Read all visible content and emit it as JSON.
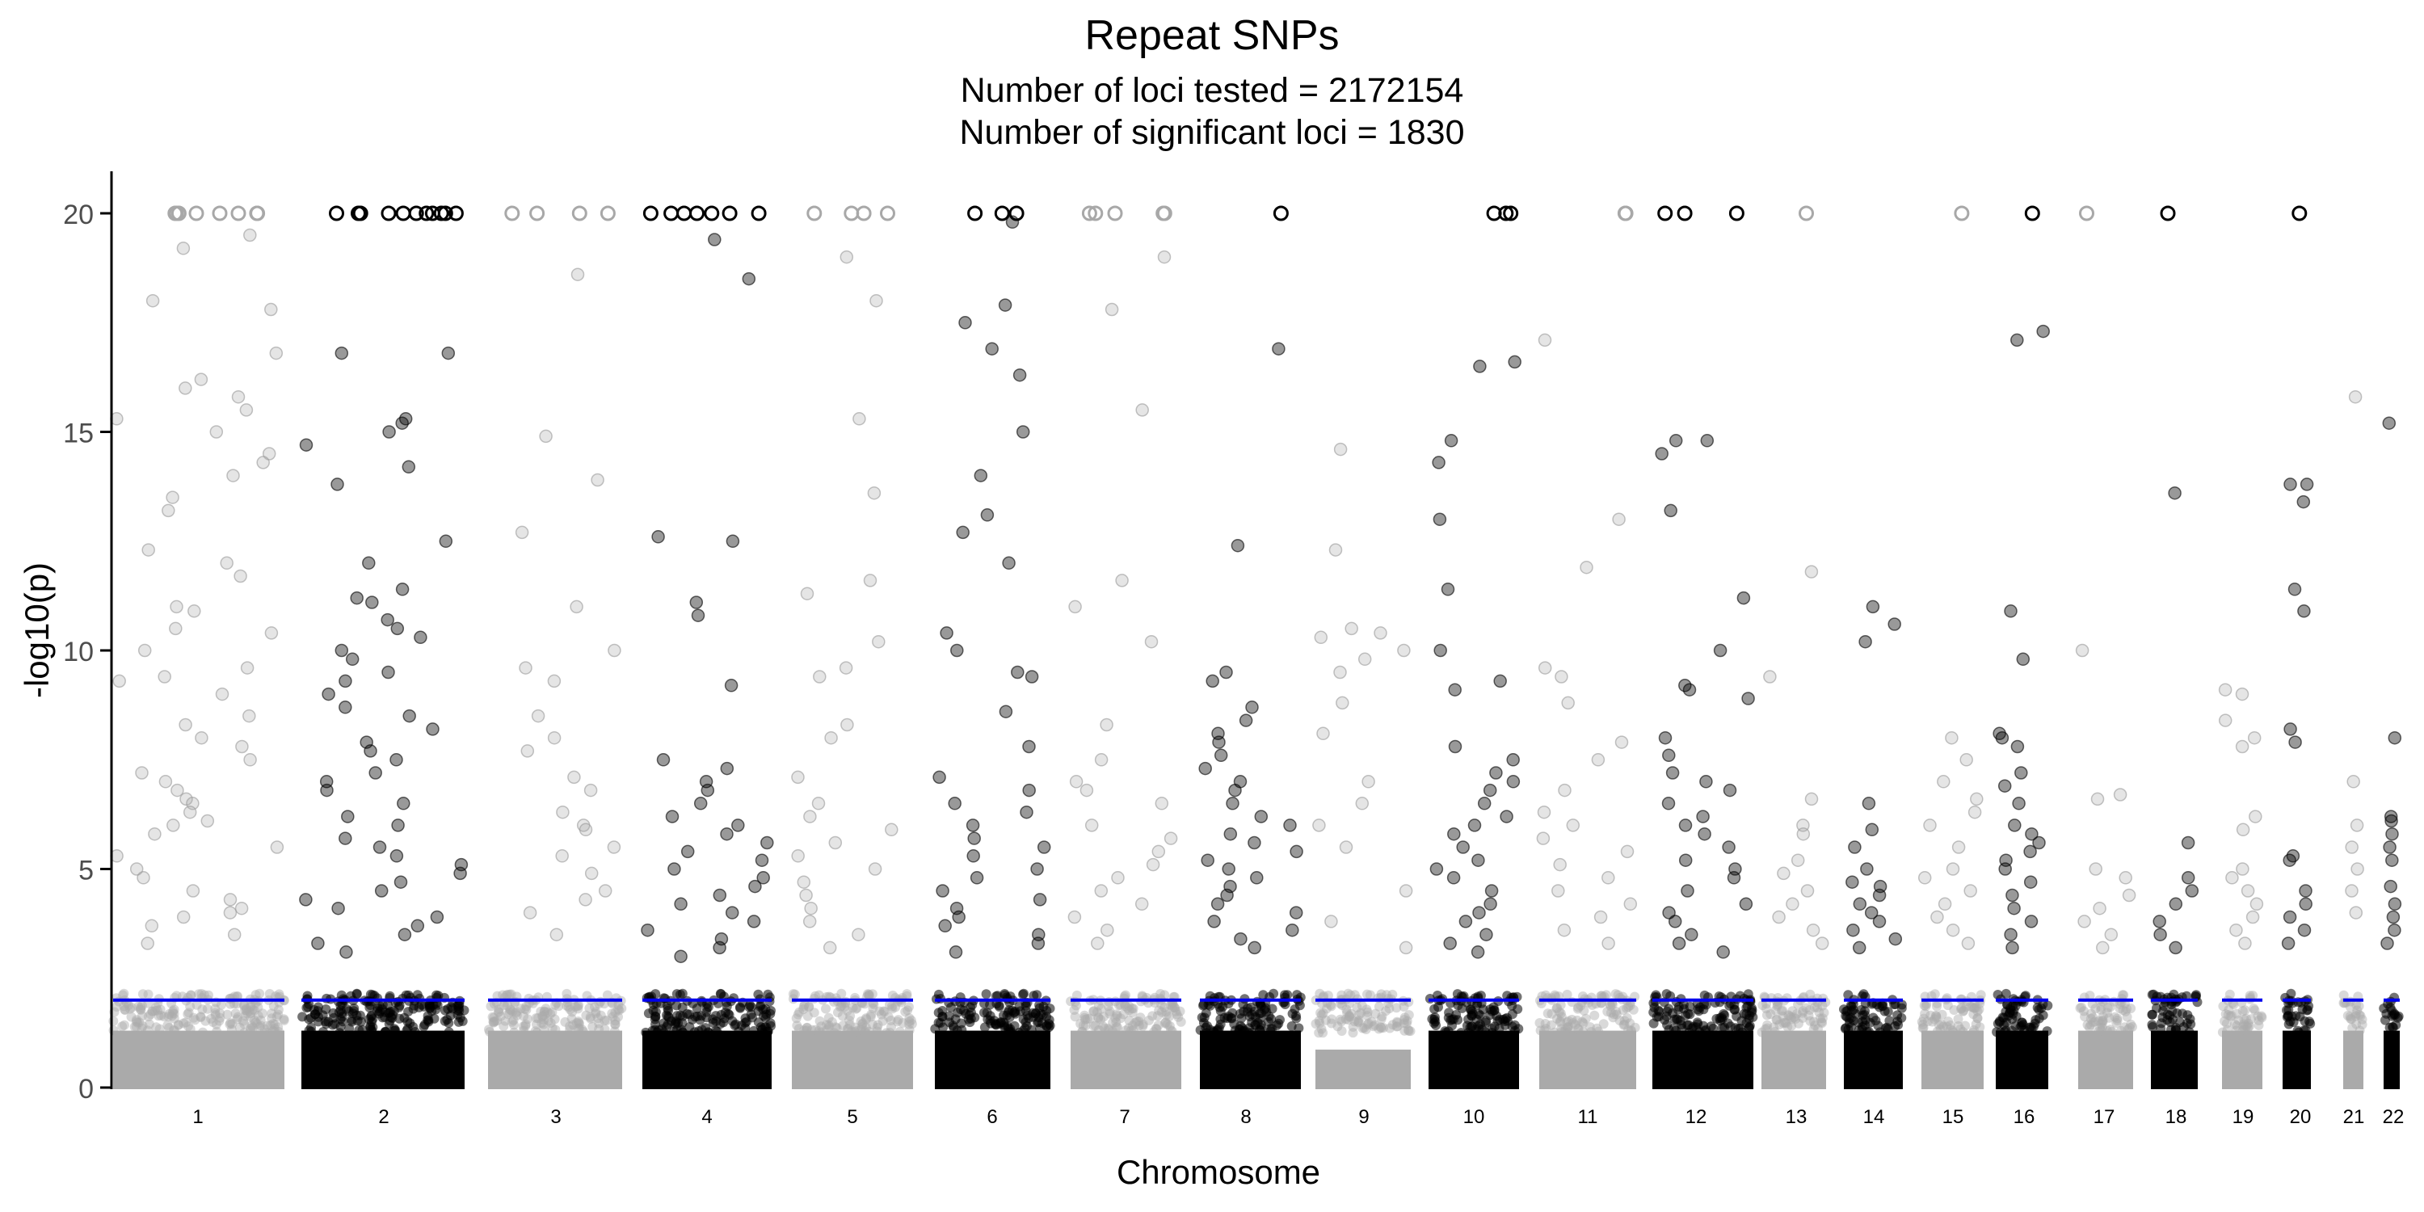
{
  "chart_data": {
    "type": "scatter",
    "title": "Repeat SNPs",
    "subtitle_lines": [
      "Number of loci tested = 2172154",
      " Number of significant loci = 1830"
    ],
    "xlabel": "Chromosome",
    "ylabel": "-log10(p)",
    "ylim": [
      0,
      21
    ],
    "y_ticks": [
      0,
      5,
      10,
      15,
      20
    ],
    "grid": false,
    "legend": "none",
    "significance_threshold": 2,
    "threshold_color": "#0000ee",
    "cap_value": 20,
    "colors": {
      "odd_chromosome": "#aaaaaa",
      "even_chromosome": "#000000"
    },
    "chromosomes": [
      {
        "label": "1",
        "capped": 8,
        "peaks": [
          19.5,
          19.2,
          18.0,
          17.8,
          16.8,
          16.2,
          16.0,
          15.8,
          15.5,
          15.3,
          15.0,
          14.5,
          14.3,
          14.0,
          13.5,
          13.2,
          12.3,
          12.0,
          11.7,
          11.0,
          10.9,
          10.5,
          10.4,
          10.0,
          9.6,
          9.4,
          9.3,
          9.0,
          8.5,
          8.3,
          8.0,
          7.8,
          7.5,
          7.2,
          7.0,
          6.8,
          6.6,
          6.5,
          6.3,
          6.1,
          6.0,
          5.8,
          5.5,
          5.3,
          5.0,
          4.8,
          4.5,
          4.3,
          4.1,
          4.0,
          3.9,
          3.7,
          3.5,
          3.3
        ]
      },
      {
        "label": "2",
        "capped": 11,
        "peaks": [
          16.8,
          16.8,
          15.3,
          15.2,
          15.0,
          14.7,
          14.2,
          13.8,
          12.5,
          12.0,
          11.4,
          11.2,
          11.1,
          10.7,
          10.5,
          10.3,
          10.0,
          9.8,
          9.5,
          9.3,
          9.0,
          8.7,
          8.5,
          8.2,
          7.9,
          7.7,
          7.5,
          7.2,
          7.0,
          6.8,
          6.5,
          6.2,
          6.0,
          5.7,
          5.5,
          5.3,
          5.1,
          4.9,
          4.7,
          4.5,
          4.3,
          4.1,
          3.9,
          3.7,
          3.5,
          3.3,
          3.1
        ]
      },
      {
        "label": "3",
        "capped": 4,
        "peaks": [
          18.6,
          14.9,
          13.9,
          12.7,
          11.0,
          10.0,
          9.6,
          9.3,
          8.5,
          8.0,
          7.7,
          7.1,
          6.8,
          6.3,
          6.0,
          5.9,
          5.5,
          5.3,
          4.9,
          4.5,
          4.3,
          4.0,
          3.5
        ]
      },
      {
        "label": "4",
        "capped": 7,
        "peaks": [
          19.4,
          18.5,
          12.6,
          12.5,
          11.1,
          10.8,
          9.2,
          7.5,
          7.3,
          7.0,
          6.8,
          6.5,
          6.2,
          6.0,
          5.8,
          5.6,
          5.4,
          5.2,
          5.0,
          4.8,
          4.6,
          4.4,
          4.2,
          4.0,
          3.8,
          3.6,
          3.4,
          3.2,
          3.0
        ]
      },
      {
        "label": "5",
        "capped": 4,
        "peaks": [
          19.0,
          18.0,
          15.3,
          13.6,
          11.6,
          11.3,
          10.2,
          9.6,
          9.4,
          8.3,
          8.0,
          7.1,
          6.5,
          6.2,
          5.9,
          5.6,
          5.3,
          5.0,
          4.7,
          4.4,
          4.1,
          3.8,
          3.5,
          3.2
        ]
      },
      {
        "label": "6",
        "capped": 3,
        "peaks": [
          19.8,
          17.9,
          17.5,
          16.9,
          16.3,
          15.0,
          14.0,
          13.1,
          12.7,
          12.0,
          10.4,
          10.0,
          9.5,
          9.4,
          8.6,
          7.8,
          7.1,
          6.8,
          6.5,
          6.3,
          6.0,
          5.7,
          5.5,
          5.3,
          5.0,
          4.8,
          4.5,
          4.3,
          4.1,
          3.9,
          3.7,
          3.5,
          3.3,
          3.1
        ]
      },
      {
        "label": "7",
        "capped": 5,
        "peaks": [
          19.0,
          17.8,
          15.5,
          11.6,
          11.0,
          10.2,
          8.3,
          7.5,
          7.0,
          6.8,
          6.5,
          6.0,
          5.7,
          5.4,
          5.1,
          4.8,
          4.5,
          4.2,
          3.9,
          3.6,
          3.3
        ]
      },
      {
        "label": "8",
        "capped": 1,
        "peaks": [
          16.9,
          12.4,
          9.5,
          9.3,
          8.7,
          8.4,
          8.1,
          7.9,
          7.6,
          7.3,
          7.0,
          6.8,
          6.5,
          6.2,
          6.0,
          5.8,
          5.6,
          5.4,
          5.2,
          5.0,
          4.8,
          4.6,
          4.4,
          4.2,
          4.0,
          3.8,
          3.6,
          3.4,
          3.2
        ]
      },
      {
        "label": "9",
        "capped": 0,
        "peaks": [
          14.6,
          12.3,
          10.5,
          10.4,
          10.3,
          10.0,
          9.8,
          9.5,
          8.8,
          8.1,
          7.0,
          6.5,
          6.0,
          5.5,
          4.5,
          3.8,
          3.2
        ]
      },
      {
        "label": "10",
        "capped": 3,
        "peaks": [
          16.6,
          16.5,
          14.8,
          14.3,
          13.0,
          11.4,
          10.0,
          9.3,
          9.1,
          7.8,
          7.5,
          7.2,
          7.0,
          6.8,
          6.5,
          6.2,
          6.0,
          5.8,
          5.5,
          5.2,
          5.0,
          4.8,
          4.5,
          4.2,
          4.0,
          3.8,
          3.5,
          3.3,
          3.1
        ]
      },
      {
        "label": "11",
        "capped": 2,
        "peaks": [
          17.1,
          13.0,
          11.9,
          9.6,
          9.4,
          8.8,
          7.9,
          7.5,
          6.8,
          6.3,
          6.0,
          5.7,
          5.4,
          5.1,
          4.8,
          4.5,
          4.2,
          3.9,
          3.6,
          3.3
        ]
      },
      {
        "label": "12",
        "capped": 3,
        "peaks": [
          14.8,
          14.8,
          14.5,
          13.2,
          11.2,
          10.0,
          9.2,
          9.1,
          8.9,
          8.0,
          7.6,
          7.2,
          7.0,
          6.8,
          6.5,
          6.2,
          6.0,
          5.8,
          5.5,
          5.2,
          5.0,
          4.8,
          4.5,
          4.2,
          4.0,
          3.8,
          3.5,
          3.3,
          3.1
        ]
      },
      {
        "label": "13",
        "capped": 1,
        "peaks": [
          11.8,
          9.4,
          6.6,
          6.0,
          5.8,
          5.2,
          4.9,
          4.5,
          4.2,
          3.9,
          3.6,
          3.3
        ]
      },
      {
        "label": "14",
        "capped": 0,
        "peaks": [
          11.0,
          10.6,
          10.2,
          6.5,
          5.9,
          5.5,
          5.0,
          4.7,
          4.6,
          4.4,
          4.2,
          4.0,
          3.8,
          3.6,
          3.4,
          3.2
        ]
      },
      {
        "label": "15",
        "capped": 1,
        "peaks": [
          8.0,
          7.5,
          7.0,
          6.6,
          6.3,
          6.0,
          5.5,
          5.0,
          4.8,
          4.5,
          4.2,
          3.9,
          3.6,
          3.3
        ]
      },
      {
        "label": "16",
        "capped": 1,
        "peaks": [
          17.3,
          17.1,
          10.9,
          9.8,
          8.1,
          8.0,
          7.8,
          7.2,
          6.9,
          6.5,
          6.0,
          5.8,
          5.6,
          5.4,
          5.2,
          5.0,
          4.7,
          4.4,
          4.1,
          3.8,
          3.5,
          3.2
        ]
      },
      {
        "label": "17",
        "capped": 1,
        "peaks": [
          10.0,
          6.7,
          6.6,
          5.0,
          4.8,
          4.4,
          4.1,
          3.8,
          3.5,
          3.2
        ]
      },
      {
        "label": "18",
        "capped": 1,
        "peaks": [
          13.6,
          5.6,
          4.8,
          4.5,
          4.2,
          3.8,
          3.5,
          3.2
        ]
      },
      {
        "label": "19",
        "capped": 0,
        "peaks": [
          9.1,
          9.0,
          8.4,
          8.0,
          7.8,
          6.2,
          5.9,
          5.0,
          4.8,
          4.5,
          4.2,
          3.9,
          3.6,
          3.3
        ]
      },
      {
        "label": "20",
        "capped": 1,
        "peaks": [
          13.8,
          13.8,
          13.4,
          11.4,
          10.9,
          8.2,
          7.9,
          5.3,
          5.2,
          4.5,
          4.2,
          3.9,
          3.6,
          3.3
        ]
      },
      {
        "label": "21",
        "capped": 0,
        "peaks": [
          15.8,
          7.0,
          6.0,
          5.5,
          5.0,
          4.5,
          4.0
        ]
      },
      {
        "label": "22",
        "capped": 0,
        "peaks": [
          15.2,
          8.0,
          6.2,
          6.1,
          5.8,
          5.5,
          5.2,
          4.6,
          4.2,
          3.9,
          3.6,
          3.3
        ]
      }
    ]
  }
}
